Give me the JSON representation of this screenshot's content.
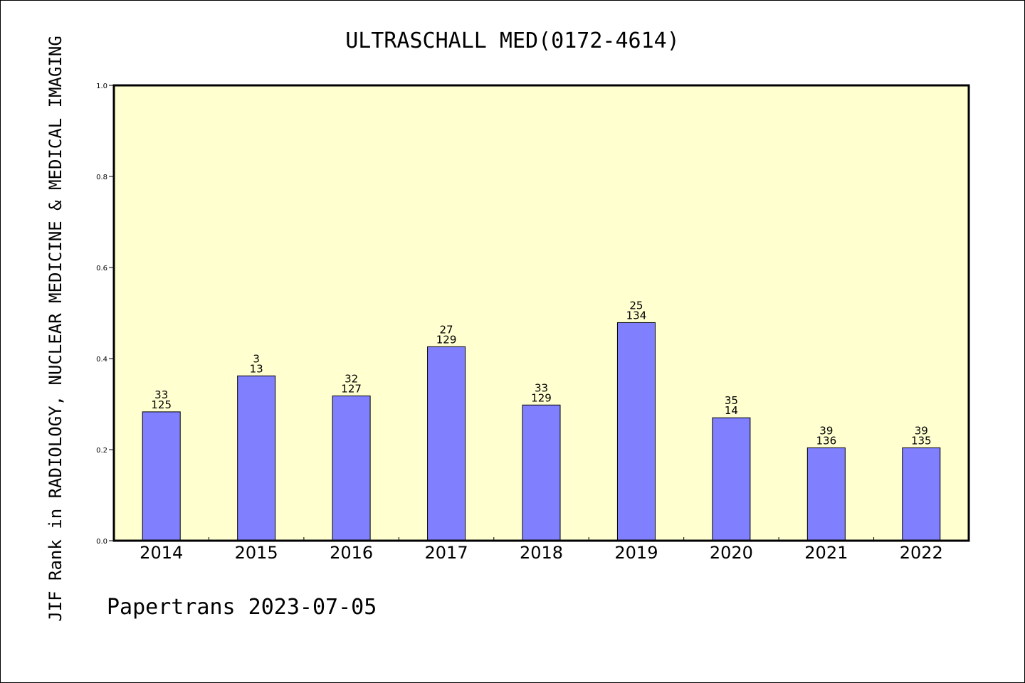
{
  "chart_data": {
    "type": "bar",
    "title": "ULTRASCHALL MED(0172-4614)",
    "ylabel": "JIF Rank in RADIOLOGY, NUCLEAR MEDICINE & MEDICAL IMAGING",
    "xlabel": "",
    "credit": "Papertrans 2023-07-05",
    "ylim": [
      0.0,
      1.0
    ],
    "yticks": [
      "0.0",
      "0.2",
      "0.4",
      "0.6",
      "0.8",
      "1.0"
    ],
    "categories": [
      "2014",
      "2015",
      "2016",
      "2017",
      "2018",
      "2019",
      "2020",
      "2021",
      "2022"
    ],
    "values": [
      0.283,
      0.362,
      0.318,
      0.426,
      0.298,
      0.479,
      0.27,
      0.204,
      0.204
    ],
    "labels_top": [
      "33",
      "3",
      "32",
      "27",
      "33",
      "25",
      "35",
      "39",
      "39"
    ],
    "labels_bottom": [
      "125",
      "13",
      "127",
      "129",
      "129",
      "134",
      "14",
      "136",
      "135"
    ],
    "bar_color": "#8080ff",
    "plot_background": "#ffffd0",
    "grid": false
  }
}
